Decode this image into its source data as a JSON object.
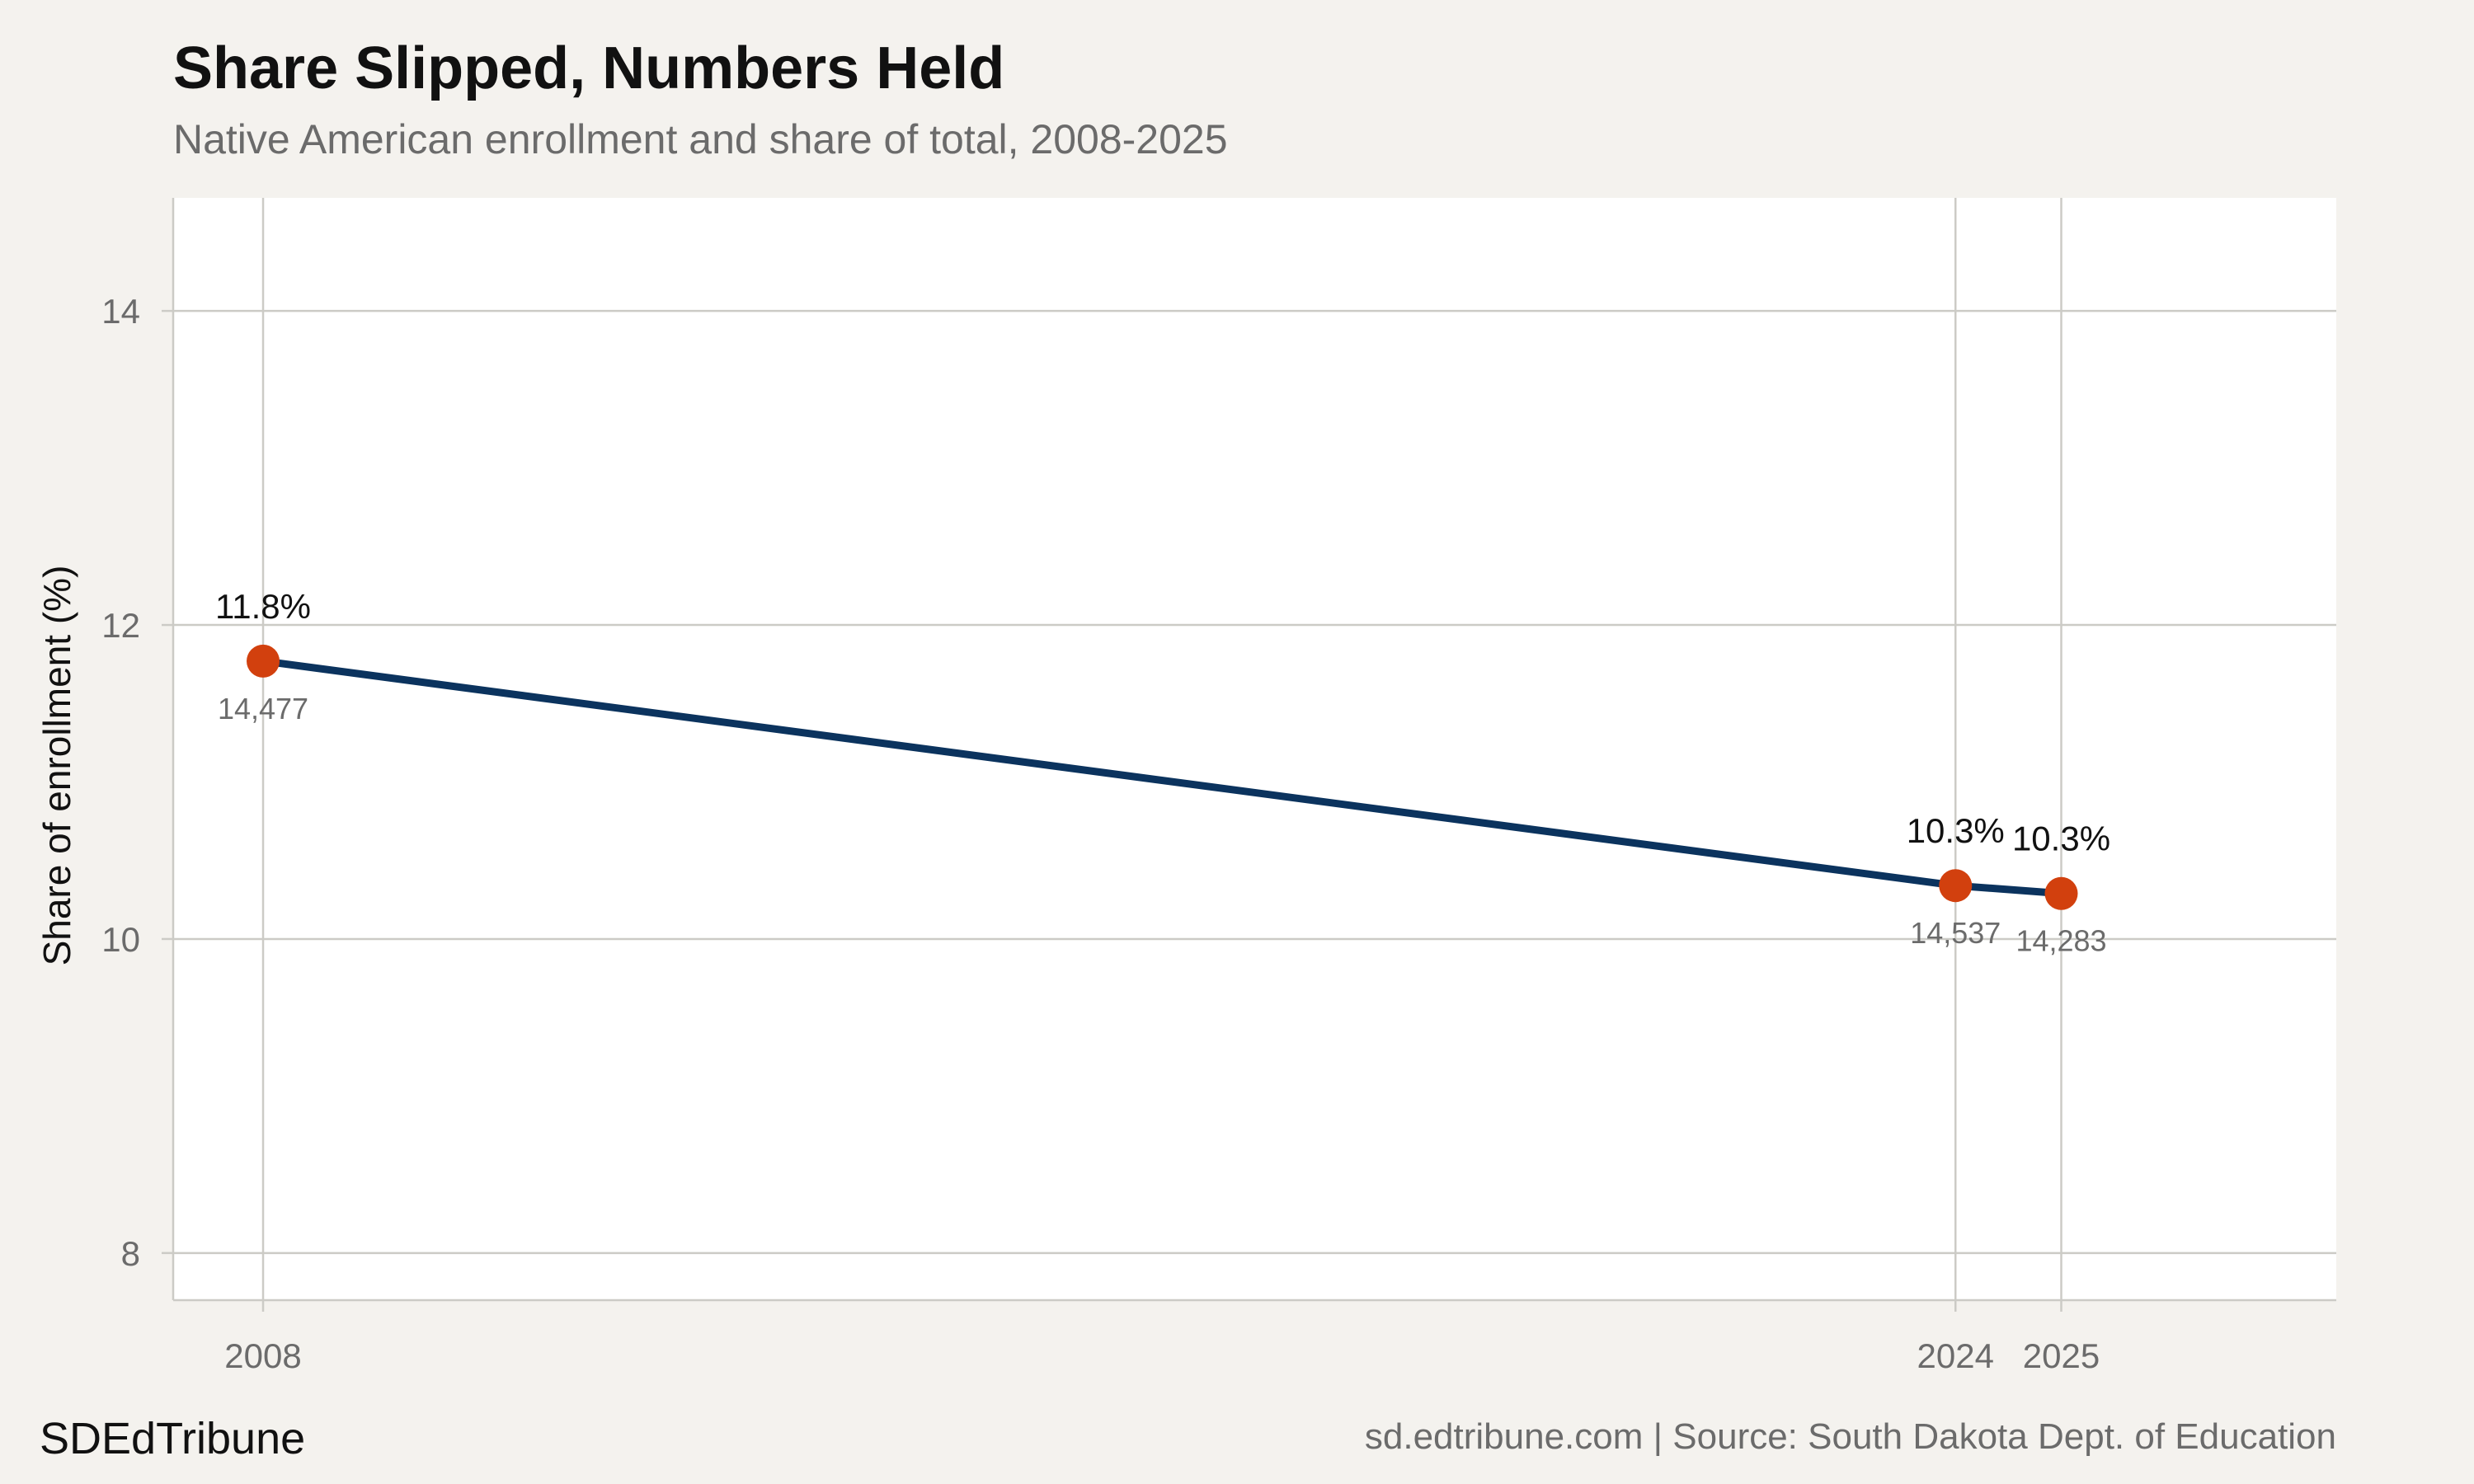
{
  "header": {
    "title": "Share Slipped, Numbers Held",
    "subtitle": "Native American enrollment and share of total, 2008-2025"
  },
  "footer": {
    "brand": "SDEdTribune",
    "source": "sd.edtribune.com | Source: South Dakota Dept. of Education"
  },
  "colors": {
    "background": "#f4f2ee",
    "panel": "#ffffff",
    "grid": "#cccbc6",
    "line": "#0b335e",
    "point": "#d2400e",
    "label": "#111111",
    "sublabel": "#6b6b6b"
  },
  "chart_data": {
    "type": "line",
    "ylabel": "Share of enrollment (%)",
    "xlabel": "",
    "x": [
      2008,
      2024,
      2025
    ],
    "x_tick_labels": [
      "2008",
      "2024",
      "2025"
    ],
    "y_ticks": [
      8,
      10,
      12,
      14
    ],
    "y_tick_labels": [
      "8",
      "10",
      "12",
      "14"
    ],
    "xlim": [
      2007.15,
      2027.6
    ],
    "ylim": [
      7.7,
      14.72
    ],
    "grid": true,
    "series": [
      {
        "values": [
          11.77,
          10.34,
          10.29
        ],
        "labels": [
          "11.8%",
          "10.3%",
          "10.3%"
        ],
        "enrollment": [
          "14,477",
          "14,537",
          "14,283"
        ]
      }
    ]
  }
}
